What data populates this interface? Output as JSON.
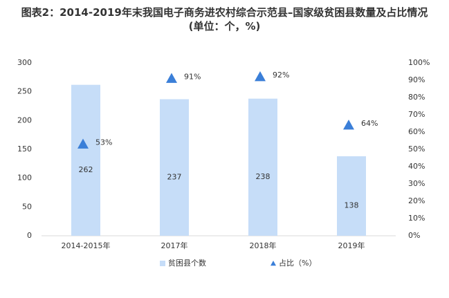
{
  "chart_data": {
    "type": "bar",
    "title": "图表2：2014-2019年末我国电子商务进农村综合示范县–国家级贫困县数量及占比情况(单位：个，%)",
    "categories": [
      "2014-2015年",
      "2017年",
      "2018年",
      "2019年"
    ],
    "series": [
      {
        "name": "贫困县个数",
        "color": "#c6ddf8",
        "values": [
          262,
          237,
          238,
          138
        ]
      },
      {
        "name": "占比（%）",
        "color": "#3b7fd8",
        "type": "scatter",
        "axis": "y2",
        "values": [
          53,
          91,
          92,
          64
        ],
        "value_labels": [
          "53%",
          "91%",
          "92%",
          "64%"
        ]
      }
    ],
    "ylim": [
      0,
      300
    ],
    "yticks": [
      0,
      50,
      100,
      150,
      200,
      250,
      300
    ],
    "y2lim": [
      0,
      100
    ],
    "y2ticks": [
      {
        "value": 0,
        "label": "0%"
      },
      {
        "value": 10,
        "label": "10%"
      },
      {
        "value": 20,
        "label": "20%"
      },
      {
        "value": 30,
        "label": "30%"
      },
      {
        "value": 40,
        "label": "40%"
      },
      {
        "value": 50,
        "label": "50%"
      },
      {
        "value": 60,
        "label": "60%"
      },
      {
        "value": 70,
        "label": "70%"
      },
      {
        "value": 80,
        "label": "80%"
      },
      {
        "value": 90,
        "label": "90%"
      },
      {
        "value": 100,
        "label": "100%"
      }
    ],
    "legend": "bottom"
  }
}
